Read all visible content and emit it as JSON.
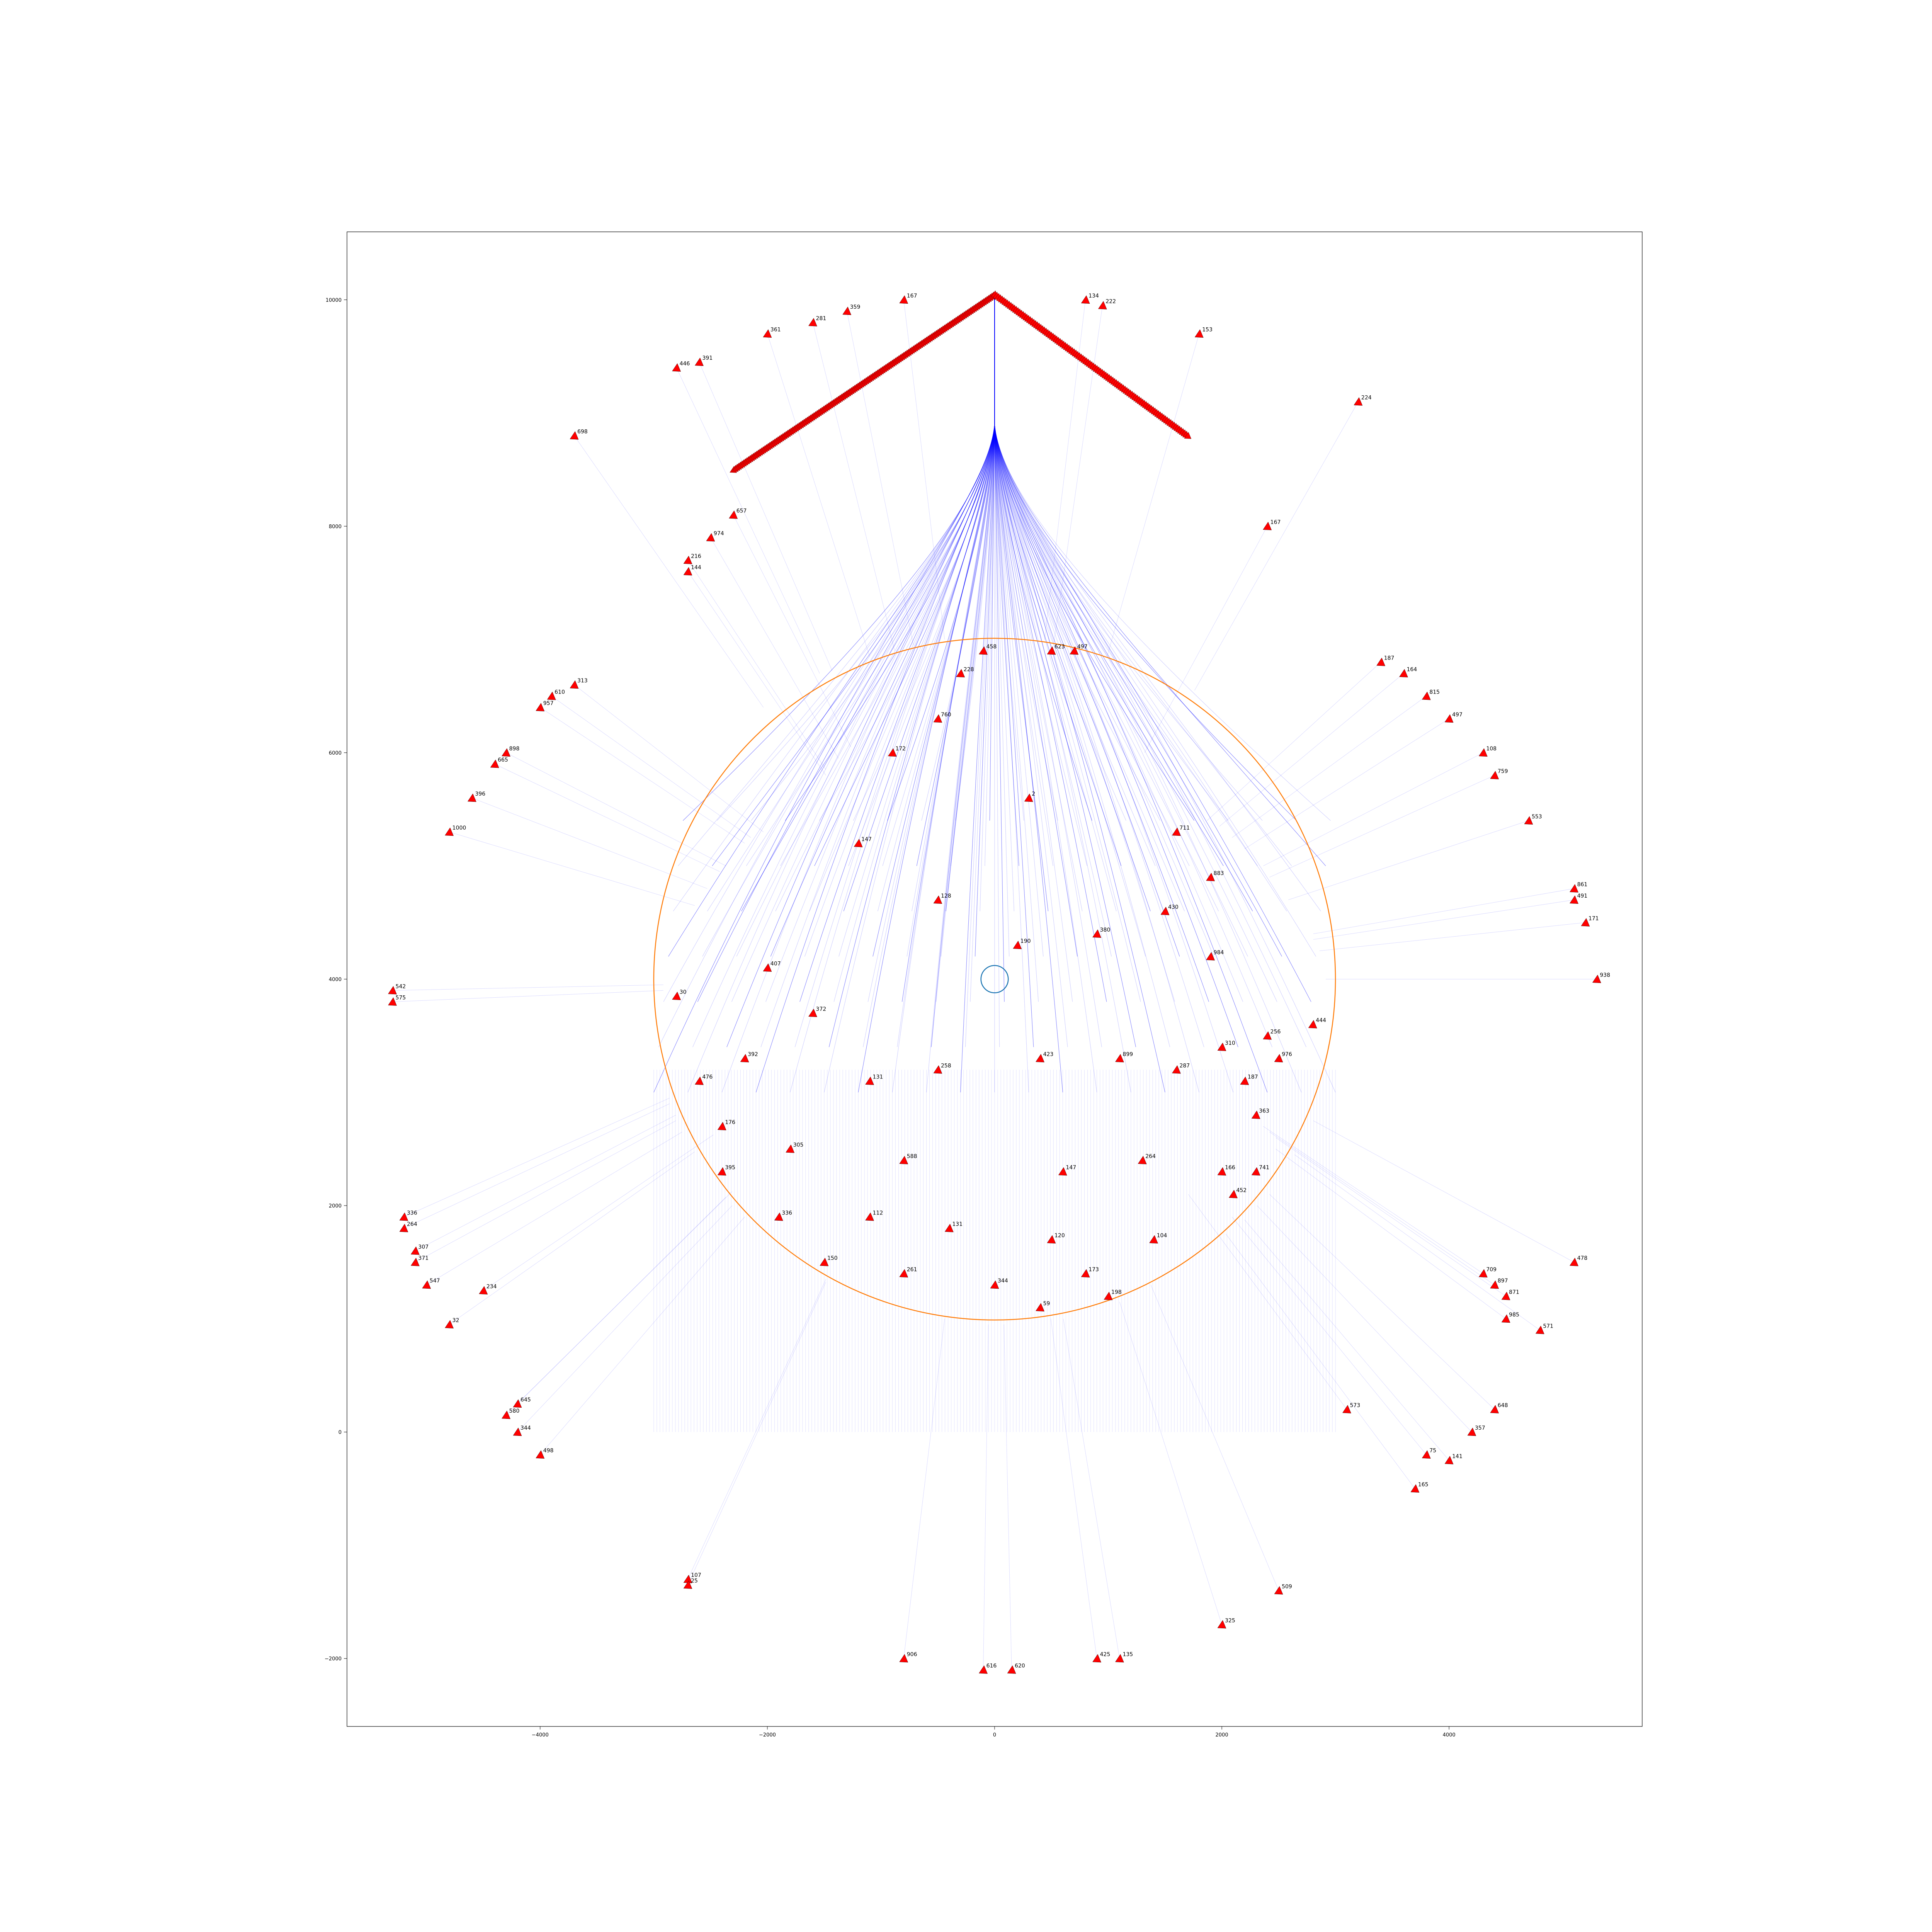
{
  "chart_data": {
    "type": "scatter",
    "title": "",
    "xlabel": "",
    "ylabel": "",
    "xlim": [
      -5700,
      5700
    ],
    "ylim": [
      -2600,
      10600
    ],
    "grid": false,
    "xticks": [
      -4000,
      -2000,
      0,
      2000,
      4000
    ],
    "yticks": [
      -2000,
      0,
      2000,
      4000,
      6000,
      8000,
      10000
    ],
    "xtick_labels": [
      "−4000",
      "−2000",
      "0",
      "2000",
      "4000"
    ],
    "ytick_labels": [
      "−2000",
      "0",
      "2000",
      "4000",
      "6000",
      "8000",
      "10000"
    ],
    "circles": [
      {
        "center": [
          0,
          4000
        ],
        "radius": 3000,
        "color": "#ff7f0e"
      },
      {
        "center": [
          0,
          4000
        ],
        "radius": 120,
        "color": "#1f77b4"
      }
    ],
    "colors": {
      "marker": "#ff0000",
      "marker_edge": "#000000",
      "path": "#0000ff",
      "circle_outer": "#ff7f0e",
      "circle_inner": "#1f77b4"
    },
    "series": [
      {
        "marker": "triangle",
        "points": [
          {
            "x": 3200,
            "y": 9100,
            "label": "224"
          },
          {
            "x": 1800,
            "y": 9700,
            "label": "153"
          },
          {
            "x": 800,
            "y": 10000,
            "label": "134"
          },
          {
            "x": 950,
            "y": 9950,
            "label": "222"
          },
          {
            "x": -800,
            "y": 10000,
            "label": "167"
          },
          {
            "x": -1600,
            "y": 9800,
            "label": "281"
          },
          {
            "x": -1300,
            "y": 9900,
            "label": "359"
          },
          {
            "x": -2000,
            "y": 9700,
            "label": "361"
          },
          {
            "x": -2600,
            "y": 9450,
            "label": "391"
          },
          {
            "x": -2800,
            "y": 9400,
            "label": "446"
          },
          {
            "x": -3700,
            "y": 8800,
            "label": "698"
          },
          {
            "x": -2300,
            "y": 8100,
            "label": "657"
          },
          {
            "x": -2500,
            "y": 7900,
            "label": "974"
          },
          {
            "x": -2700,
            "y": 7700,
            "label": "216"
          },
          {
            "x": -2700,
            "y": 7600,
            "label": "144"
          },
          {
            "x": 2400,
            "y": 8000,
            "label": "167"
          },
          {
            "x": -3700,
            "y": 6600,
            "label": "313"
          },
          {
            "x": -3900,
            "y": 6500,
            "label": "610"
          },
          {
            "x": -4000,
            "y": 6400,
            "label": "957"
          },
          {
            "x": -4300,
            "y": 6000,
            "label": "898"
          },
          {
            "x": -4400,
            "y": 5900,
            "label": "665"
          },
          {
            "x": -4600,
            "y": 5600,
            "label": "396"
          },
          {
            "x": -4800,
            "y": 5300,
            "label": "1000"
          },
          {
            "x": -5300,
            "y": 3900,
            "label": "542"
          },
          {
            "x": -5300,
            "y": 3800,
            "label": "575"
          },
          {
            "x": -2800,
            "y": 3850,
            "label": "30"
          },
          {
            "x": -5200,
            "y": 1900,
            "label": "336"
          },
          {
            "x": -5200,
            "y": 1800,
            "label": "264"
          },
          {
            "x": -5100,
            "y": 1600,
            "label": "307"
          },
          {
            "x": -5100,
            "y": 1500,
            "label": "371"
          },
          {
            "x": -5000,
            "y": 1300,
            "label": "547"
          },
          {
            "x": -4500,
            "y": 1250,
            "label": "234"
          },
          {
            "x": -4800,
            "y": 950,
            "label": "32"
          },
          {
            "x": -4200,
            "y": 250,
            "label": "645"
          },
          {
            "x": -4300,
            "y": 150,
            "label": "580"
          },
          {
            "x": -4200,
            "y": 0,
            "label": "344"
          },
          {
            "x": -4000,
            "y": -200,
            "label": "498"
          },
          {
            "x": -2700,
            "y": -1300,
            "label": "107"
          },
          {
            "x": -2700,
            "y": -1350,
            "label": "25"
          },
          {
            "x": -800,
            "y": -2000,
            "label": "906"
          },
          {
            "x": -100,
            "y": -2100,
            "label": "616"
          },
          {
            "x": 150,
            "y": -2100,
            "label": "620"
          },
          {
            "x": 900,
            "y": -2000,
            "label": "425"
          },
          {
            "x": 1100,
            "y": -2000,
            "label": "135"
          },
          {
            "x": 2000,
            "y": -1700,
            "label": "325"
          },
          {
            "x": 2500,
            "y": -1400,
            "label": "509"
          },
          {
            "x": 3700,
            "y": -500,
            "label": "165"
          },
          {
            "x": 3800,
            "y": -200,
            "label": "75"
          },
          {
            "x": 4000,
            "y": -250,
            "label": "141"
          },
          {
            "x": 4200,
            "y": 0,
            "label": "357"
          },
          {
            "x": 4400,
            "y": 200,
            "label": "648"
          },
          {
            "x": 3100,
            "y": 200,
            "label": "573"
          },
          {
            "x": 4800,
            "y": 900,
            "label": "571"
          },
          {
            "x": 4500,
            "y": 1000,
            "label": "985"
          },
          {
            "x": 4300,
            "y": 1400,
            "label": "709"
          },
          {
            "x": 4400,
            "y": 1300,
            "label": "897"
          },
          {
            "x": 4500,
            "y": 1200,
            "label": "871"
          },
          {
            "x": 5100,
            "y": 1500,
            "label": "478"
          },
          {
            "x": 2800,
            "y": 3600,
            "label": "444"
          },
          {
            "x": 2400,
            "y": 3500,
            "label": "256"
          },
          {
            "x": 2500,
            "y": 3300,
            "label": "976"
          },
          {
            "x": 5300,
            "y": 4000,
            "label": "938"
          },
          {
            "x": 5200,
            "y": 4500,
            "label": "171"
          },
          {
            "x": 5100,
            "y": 4800,
            "label": "861"
          },
          {
            "x": 5100,
            "y": 4700,
            "label": "491"
          },
          {
            "x": 4700,
            "y": 5400,
            "label": "553"
          },
          {
            "x": 4400,
            "y": 5800,
            "label": "759"
          },
          {
            "x": 4300,
            "y": 6000,
            "label": "108"
          },
          {
            "x": 4000,
            "y": 6300,
            "label": "497"
          },
          {
            "x": 3800,
            "y": 6500,
            "label": "815"
          },
          {
            "x": 3600,
            "y": 6700,
            "label": "164"
          },
          {
            "x": 3400,
            "y": 6800,
            "label": "187"
          },
          {
            "x": -1200,
            "y": 5200,
            "label": "147"
          },
          {
            "x": -500,
            "y": 4700,
            "label": "128"
          },
          {
            "x": 200,
            "y": 4300,
            "label": "190"
          },
          {
            "x": 900,
            "y": 4400,
            "label": "380"
          },
          {
            "x": 1500,
            "y": 4600,
            "label": "430"
          },
          {
            "x": 1900,
            "y": 4200,
            "label": "984"
          },
          {
            "x": -2000,
            "y": 4100,
            "label": "407"
          },
          {
            "x": -1600,
            "y": 3700,
            "label": "372"
          },
          {
            "x": -2200,
            "y": 3300,
            "label": "392"
          },
          {
            "x": -1100,
            "y": 3100,
            "label": "131"
          },
          {
            "x": -500,
            "y": 3200,
            "label": "258"
          },
          {
            "x": 400,
            "y": 3300,
            "label": "423"
          },
          {
            "x": 1100,
            "y": 3300,
            "label": "899"
          },
          {
            "x": 1600,
            "y": 3200,
            "label": "287"
          },
          {
            "x": -2400,
            "y": 2700,
            "label": "176"
          },
          {
            "x": -1800,
            "y": 2500,
            "label": "305"
          },
          {
            "x": -800,
            "y": 2400,
            "label": "588"
          },
          {
            "x": 600,
            "y": 2300,
            "label": "147"
          },
          {
            "x": 1300,
            "y": 2400,
            "label": "264"
          },
          {
            "x": 2000,
            "y": 2300,
            "label": "166"
          },
          {
            "x": -1900,
            "y": 1900,
            "label": "336"
          },
          {
            "x": -1100,
            "y": 1900,
            "label": "112"
          },
          {
            "x": -400,
            "y": 1800,
            "label": "131"
          },
          {
            "x": 500,
            "y": 1700,
            "label": "120"
          },
          {
            "x": 1400,
            "y": 1700,
            "label": "104"
          },
          {
            "x": -1500,
            "y": 1500,
            "label": "150"
          },
          {
            "x": -800,
            "y": 1400,
            "label": "261"
          },
          {
            "x": 0,
            "y": 1300,
            "label": "344"
          },
          {
            "x": 800,
            "y": 1400,
            "label": "173"
          },
          {
            "x": 1000,
            "y": 1200,
            "label": "198"
          },
          {
            "x": 400,
            "y": 1100,
            "label": "59"
          },
          {
            "x": -300,
            "y": 6700,
            "label": "228"
          },
          {
            "x": -100,
            "y": 6900,
            "label": "458"
          },
          {
            "x": 500,
            "y": 6900,
            "label": "623"
          },
          {
            "x": 700,
            "y": 6900,
            "label": "497"
          },
          {
            "x": -500,
            "y": 6300,
            "label": "760"
          },
          {
            "x": -900,
            "y": 6000,
            "label": "172"
          },
          {
            "x": 300,
            "y": 5600,
            "label": "2"
          },
          {
            "x": 1600,
            "y": 5300,
            "label": "711"
          },
          {
            "x": 1900,
            "y": 4900,
            "label": "883"
          },
          {
            "x": 2000,
            "y": 3400,
            "label": "310"
          },
          {
            "x": 2200,
            "y": 3100,
            "label": "187"
          },
          {
            "x": 2300,
            "y": 2800,
            "label": "363"
          },
          {
            "x": 2300,
            "y": 2300,
            "label": "741"
          },
          {
            "x": 2100,
            "y": 2100,
            "label": "452"
          },
          {
            "x": -2600,
            "y": 3100,
            "label": "476"
          },
          {
            "x": -2400,
            "y": 2300,
            "label": "395"
          }
        ]
      }
    ]
  }
}
